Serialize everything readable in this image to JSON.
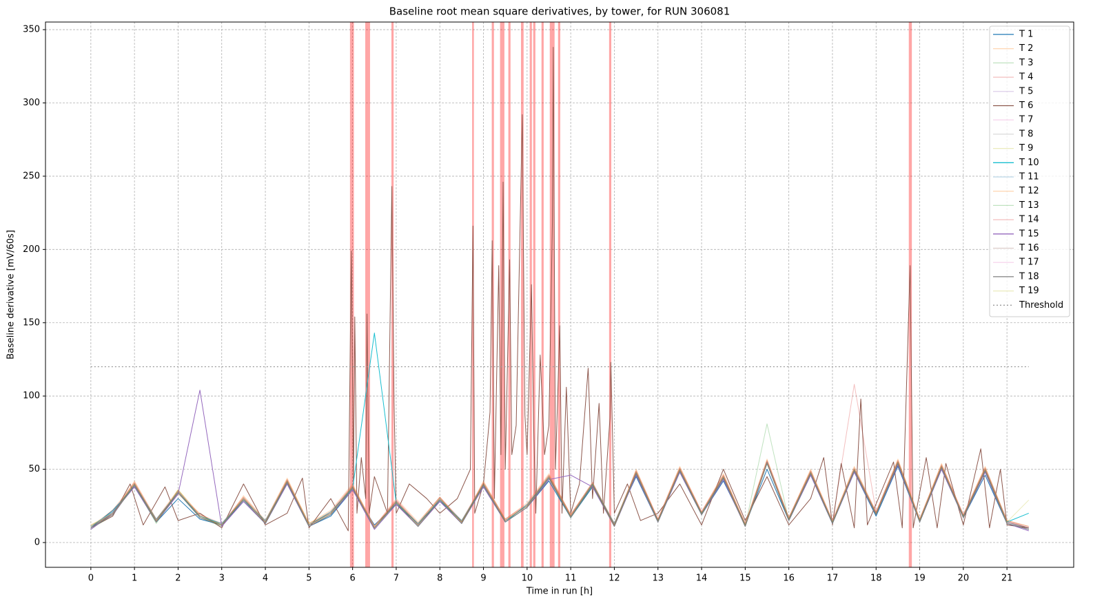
{
  "chart_data": {
    "type": "line",
    "title": "Baseline root mean square derivatives, by tower, for RUN 306081",
    "xlabel": "Time in run [h]",
    "ylabel": "Baseline derivative [mV/60s]",
    "xlim": [
      -1.04,
      22.53
    ],
    "ylim": [
      -16.9,
      355.2
    ],
    "xticks": [
      0,
      1,
      2,
      3,
      4,
      5,
      6,
      7,
      8,
      9,
      10,
      11,
      12,
      13,
      14,
      15,
      16,
      17,
      18,
      19,
      20,
      21
    ],
    "yticks": [
      0,
      50,
      100,
      150,
      200,
      250,
      300,
      350
    ],
    "grid": true,
    "legend": "upper right",
    "span_color": "#ff0000",
    "span_alpha": 0.35,
    "spans": [
      [
        5.94,
        6.03
      ],
      [
        6.29,
        6.4
      ],
      [
        6.89,
        6.94
      ],
      [
        8.74,
        8.78
      ],
      [
        9.19,
        9.24
      ],
      [
        9.38,
        9.48
      ],
      [
        9.57,
        9.62
      ],
      [
        9.86,
        9.92
      ],
      [
        10.06,
        10.11
      ],
      [
        10.14,
        10.19
      ],
      [
        10.33,
        10.38
      ],
      [
        10.52,
        10.63
      ],
      [
        10.71,
        10.76
      ],
      [
        11.88,
        11.93
      ],
      [
        18.75,
        18.82
      ]
    ],
    "x": [
      0,
      0.5,
      1,
      1.5,
      2,
      2.5,
      3,
      3.5,
      4,
      4.5,
      5,
      5.5,
      6,
      6.5,
      7,
      7.5,
      8,
      8.5,
      9,
      9.5,
      10,
      10.5,
      11,
      11.5,
      12,
      12.5,
      13,
      13.5,
      14,
      14.5,
      15,
      15.5,
      16,
      16.5,
      17,
      17.5,
      18,
      18.5,
      19,
      19.5,
      20,
      20.5,
      21,
      21.5
    ],
    "series": [
      {
        "name": "T 1",
        "color": "#1f77b4",
        "alpha": 1,
        "values": [
          10,
          22,
          38,
          14,
          30,
          16,
          12,
          28,
          13,
          40,
          11,
          18,
          36,
          12,
          26,
          13,
          28,
          15,
          38,
          14,
          24,
          42,
          17,
          38,
          13,
          45,
          14,
          48,
          19,
          42,
          12,
          50,
          15,
          46,
          13,
          48,
          18,
          52,
          14,
          50,
          17,
          46,
          13,
          9
        ]
      },
      {
        "name": "T 2",
        "color": "#ff7f0e",
        "alpha": 0.3,
        "values": [
          12,
          19,
          42,
          16,
          33,
          20,
          11,
          32,
          15,
          44,
          13,
          22,
          40,
          11,
          30,
          14,
          31,
          13,
          42,
          16,
          27,
          47,
          19,
          41,
          11,
          50,
          16,
          52,
          21,
          47,
          13,
          57,
          17,
          50,
          15,
          52,
          21,
          57,
          16,
          54,
          19,
          52,
          15,
          11
        ]
      },
      {
        "name": "T 3",
        "color": "#2ca02c",
        "alpha": 0.3,
        "values": [
          9,
          21,
          39,
          13,
          36,
          17,
          13,
          29,
          15,
          41,
          12,
          19,
          37,
          9,
          27,
          11,
          29,
          15,
          39,
          14,
          24,
          44,
          17,
          39,
          13,
          47,
          14,
          49,
          19,
          44,
          11,
          81,
          15,
          47,
          13,
          49,
          19,
          54,
          14,
          51,
          17,
          49,
          13,
          10
        ]
      },
      {
        "name": "T 4",
        "color": "#d62728",
        "alpha": 0.3,
        "values": [
          11,
          20,
          41,
          15,
          34,
          19,
          12,
          31,
          13,
          43,
          11,
          21,
          39,
          10,
          29,
          13,
          31,
          14,
          41,
          16,
          26,
          46,
          19,
          40,
          12,
          49,
          16,
          51,
          21,
          46,
          12,
          56,
          17,
          49,
          14,
          108,
          21,
          56,
          16,
          53,
          19,
          51,
          15,
          10
        ]
      },
      {
        "name": "T 5",
        "color": "#9467bd",
        "alpha": 0.3,
        "values": [
          10,
          18,
          40,
          14,
          35,
          17,
          11,
          30,
          14,
          42,
          13,
          20,
          37,
          10,
          28,
          12,
          29,
          13,
          40,
          15,
          25,
          44,
          18,
          39,
          12,
          48,
          15,
          50,
          20,
          44,
          12,
          54,
          16,
          48,
          13,
          50,
          20,
          55,
          15,
          52,
          18,
          50,
          14,
          9
        ]
      },
      {
        "name": "T 6",
        "color": "#8c564b",
        "alpha": 1,
        "x": [
          0,
          0.5,
          0.9,
          1.2,
          1.7,
          2,
          2.5,
          3,
          3.5,
          4,
          4.5,
          4.85,
          5,
          5.5,
          5.9,
          5.97,
          6.02,
          6.05,
          6.1,
          6.2,
          6.3,
          6.33,
          6.38,
          6.5,
          6.8,
          6.9,
          6.95,
          7,
          7.3,
          7.7,
          8,
          8.4,
          8.7,
          8.76,
          8.8,
          9,
          9.1,
          9.15,
          9.2,
          9.25,
          9.35,
          9.4,
          9.45,
          9.5,
          9.6,
          9.65,
          9.75,
          9.89,
          9.95,
          10,
          10.1,
          10.15,
          10.2,
          10.3,
          10.4,
          10.5,
          10.58,
          10.6,
          10.65,
          10.75,
          10.8,
          10.9,
          11,
          11.2,
          11.4,
          11.5,
          11.65,
          11.75,
          11.9,
          11.92,
          12,
          12.3,
          12.6,
          13,
          13.5,
          14,
          14.5,
          15,
          15.5,
          16,
          16.5,
          16.8,
          17,
          17.2,
          17.5,
          17.65,
          17.8,
          18.4,
          18.6,
          18.78,
          18.85,
          19.15,
          19.4,
          19.6,
          20,
          20.4,
          20.6,
          20.85,
          21,
          21.5
        ],
        "values": [
          10,
          18,
          40,
          12,
          38,
          15,
          20,
          10,
          40,
          12,
          20,
          44,
          10,
          30,
          8,
          199,
          40,
          154,
          20,
          58,
          30,
          156,
          20,
          45,
          20,
          243,
          96,
          20,
          40,
          30,
          20,
          30,
          50,
          216,
          20,
          40,
          72,
          89,
          206,
          30,
          189,
          60,
          246,
          50,
          193,
          60,
          80,
          292,
          87,
          60,
          176,
          80,
          20,
          128,
          60,
          80,
          219,
          338,
          50,
          148,
          20,
          106,
          20,
          40,
          119,
          30,
          95,
          20,
          85,
          123,
          20,
          40,
          15,
          20,
          40,
          12,
          50,
          15,
          45,
          12,
          30,
          58,
          12,
          54,
          10,
          98,
          12,
          55,
          10,
          189,
          10,
          58,
          10,
          54,
          12,
          64,
          10,
          50,
          12,
          10
        ]
      },
      {
        "name": "T 7",
        "color": "#e377c2",
        "alpha": 0.3,
        "values": [
          11,
          21,
          38,
          16,
          34,
          18,
          13,
          29,
          14,
          41,
          12,
          21,
          38,
          11,
          29,
          12,
          30,
          14,
          39,
          15,
          26,
          45,
          18,
          41,
          12,
          47,
          15,
          49,
          20,
          45,
          13,
          55,
          16,
          47,
          14,
          50,
          20,
          54,
          15,
          52,
          18,
          49,
          14,
          10
        ]
      },
      {
        "name": "T 8",
        "color": "#7f7f7f",
        "alpha": 0.3,
        "values": [
          10,
          19,
          40,
          15,
          35,
          18,
          12,
          30,
          14,
          42,
          12,
          20,
          38,
          10,
          28,
          12,
          30,
          14,
          40,
          15,
          25,
          45,
          18,
          40,
          12,
          48,
          15,
          50,
          20,
          45,
          12,
          55,
          16,
          48,
          14,
          50,
          20,
          55,
          15,
          52,
          18,
          50,
          14,
          10
        ]
      },
      {
        "name": "T 9",
        "color": "#bcbd22",
        "alpha": 0.3,
        "values": [
          12,
          20,
          41,
          14,
          36,
          19,
          12,
          31,
          15,
          43,
          13,
          20,
          39,
          11,
          28,
          13,
          31,
          14,
          41,
          16,
          25,
          46,
          19,
          41,
          13,
          49,
          15,
          51,
          20,
          46,
          13,
          56,
          17,
          49,
          14,
          51,
          20,
          56,
          16,
          53,
          18,
          51,
          15,
          11
        ]
      },
      {
        "name": "T 10",
        "color": "#17becf",
        "alpha": 1,
        "values": [
          11,
          21,
          39,
          16,
          34,
          18,
          13,
          29,
          15,
          41,
          12,
          21,
          37,
          143,
          27,
          13,
          29,
          15,
          39,
          14,
          26,
          44,
          17,
          40,
          13,
          47,
          15,
          49,
          20,
          44,
          12,
          54,
          16,
          47,
          14,
          49,
          19,
          54,
          15,
          51,
          18,
          49,
          14,
          20
        ]
      },
      {
        "name": "T 11",
        "color": "#1f77b4",
        "alpha": 0.3,
        "values": [
          10,
          20,
          40,
          15,
          35,
          18,
          12,
          30,
          14,
          42,
          12,
          20,
          38,
          10,
          28,
          12,
          30,
          14,
          40,
          15,
          25,
          45,
          18,
          40,
          12,
          48,
          15,
          50,
          20,
          45,
          12,
          55,
          16,
          48,
          14,
          50,
          20,
          55,
          15,
          52,
          18,
          50,
          14,
          10
        ]
      },
      {
        "name": "T 12",
        "color": "#ff7f0e",
        "alpha": 0.3,
        "values": [
          11,
          22,
          41,
          16,
          36,
          19,
          13,
          31,
          15,
          43,
          13,
          21,
          39,
          11,
          29,
          13,
          31,
          15,
          41,
          16,
          26,
          46,
          19,
          41,
          13,
          49,
          16,
          51,
          21,
          46,
          13,
          56,
          17,
          49,
          15,
          51,
          21,
          56,
          16,
          53,
          19,
          51,
          15,
          11
        ]
      },
      {
        "name": "T 13",
        "color": "#2ca02c",
        "alpha": 0.3,
        "values": [
          9,
          19,
          39,
          14,
          34,
          17,
          11,
          29,
          13,
          41,
          11,
          19,
          37,
          9,
          27,
          11,
          29,
          13,
          39,
          14,
          24,
          44,
          17,
          39,
          11,
          47,
          14,
          49,
          19,
          44,
          11,
          54,
          15,
          47,
          13,
          49,
          19,
          54,
          14,
          51,
          17,
          49,
          13,
          9
        ]
      },
      {
        "name": "T 14",
        "color": "#d62728",
        "alpha": 0.3,
        "values": [
          10,
          20,
          40,
          15,
          35,
          18,
          12,
          30,
          14,
          42,
          12,
          20,
          38,
          10,
          28,
          12,
          30,
          14,
          40,
          15,
          25,
          45,
          18,
          40,
          12,
          48,
          15,
          50,
          20,
          45,
          12,
          55,
          16,
          48,
          14,
          50,
          20,
          55,
          15,
          52,
          18,
          50,
          14,
          10
        ]
      },
      {
        "name": "T 15",
        "color": "#9467bd",
        "alpha": 1,
        "values": [
          9,
          20,
          38,
          14,
          33,
          104,
          11,
          28,
          13,
          40,
          11,
          19,
          36,
          9,
          26,
          11,
          28,
          13,
          38,
          14,
          24,
          43,
          46,
          38,
          11,
          46,
          14,
          48,
          19,
          43,
          11,
          55,
          15,
          46,
          13,
          48,
          19,
          53,
          14,
          50,
          17,
          48,
          13,
          8
        ]
      },
      {
        "name": "T 16",
        "color": "#8c564b",
        "alpha": 0.3,
        "values": [
          10,
          20,
          40,
          15,
          35,
          18,
          12,
          30,
          14,
          42,
          12,
          20,
          38,
          10,
          28,
          12,
          30,
          14,
          40,
          15,
          25,
          45,
          18,
          40,
          12,
          48,
          15,
          50,
          20,
          45,
          12,
          55,
          16,
          48,
          14,
          50,
          20,
          55,
          15,
          52,
          18,
          50,
          14,
          10
        ]
      },
      {
        "name": "T 17",
        "color": "#e377c2",
        "alpha": 0.3,
        "values": [
          11,
          21,
          41,
          16,
          35,
          19,
          13,
          31,
          15,
          43,
          12,
          21,
          39,
          11,
          29,
          13,
          31,
          15,
          41,
          16,
          26,
          46,
          19,
          41,
          13,
          49,
          16,
          51,
          21,
          46,
          13,
          56,
          17,
          49,
          15,
          51,
          21,
          56,
          16,
          53,
          19,
          51,
          15,
          11
        ]
      },
      {
        "name": "T 18",
        "color": "#7f7f7f",
        "alpha": 1,
        "values": [
          10,
          19,
          39,
          14,
          34,
          17,
          12,
          29,
          13,
          41,
          11,
          19,
          37,
          10,
          27,
          11,
          29,
          13,
          39,
          14,
          24,
          44,
          17,
          39,
          11,
          47,
          14,
          49,
          19,
          44,
          11,
          54,
          15,
          47,
          13,
          49,
          19,
          54,
          14,
          51,
          17,
          49,
          13,
          9
        ]
      },
      {
        "name": "T 19",
        "color": "#bcbd22",
        "alpha": 0.3,
        "values": [
          11,
          20,
          40,
          15,
          35,
          18,
          12,
          30,
          14,
          42,
          12,
          20,
          38,
          10,
          28,
          12,
          30,
          14,
          40,
          15,
          25,
          45,
          18,
          40,
          12,
          48,
          15,
          50,
          20,
          45,
          12,
          55,
          16,
          48,
          14,
          50,
          20,
          55,
          15,
          52,
          18,
          50,
          14,
          29
        ]
      },
      {
        "name": "Threshold",
        "color": "#999999",
        "alpha": 1,
        "linestyle": "dotted",
        "x": [
          0,
          21.5
        ],
        "values": [
          120,
          120
        ]
      }
    ]
  }
}
